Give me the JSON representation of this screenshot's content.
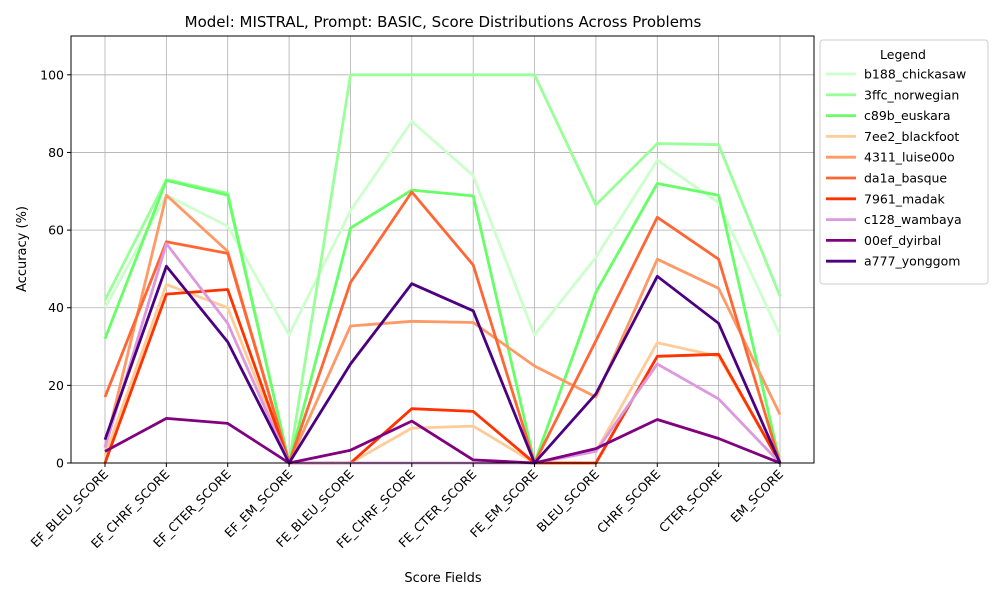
{
  "chart_data": {
    "type": "line",
    "title": "Model: MISTRAL, Prompt: BASIC, Score Distributions Across Problems",
    "xlabel": "Score Fields",
    "ylabel": "Accuracy (%)",
    "ylim": [
      0,
      110
    ],
    "yticks": [
      0,
      20,
      40,
      60,
      80,
      100
    ],
    "grid": true,
    "legend_title": "Legend",
    "legend_position": "outside-right",
    "categories": [
      "EF_BLEU_SCORE",
      "EF_CHRF_SCORE",
      "EF_CTER_SCORE",
      "EF_EM_SCORE",
      "FE_BLEU_SCORE",
      "FE_CHRF_SCORE",
      "FE_CTER_SCORE",
      "FE_EM_SCORE",
      "BLEU_SCORE",
      "CHRF_SCORE",
      "CTER_SCORE",
      "EM_SCORE"
    ],
    "series": [
      {
        "name": "b188_chickasaw",
        "color": "#ccffcc",
        "values": [
          40,
          69,
          61,
          33,
          65,
          88,
          74,
          33,
          53,
          78,
          67,
          33
        ]
      },
      {
        "name": "3ffc_norwegian",
        "color": "#99ff99",
        "values": [
          42,
          73,
          69.5,
          0,
          100,
          100,
          100,
          100,
          66.5,
          82.3,
          82,
          43
        ]
      },
      {
        "name": "c89b_euskara",
        "color": "#66ff66",
        "values": [
          32,
          72.8,
          69,
          0,
          60.5,
          70.3,
          68.8,
          0,
          44,
          72,
          69,
          0
        ]
      },
      {
        "name": "7ee2_blackfoot",
        "color": "#ffcc99",
        "values": [
          2,
          46,
          40,
          0,
          0,
          9,
          9.5,
          0,
          3,
          31,
          27.5,
          0
        ]
      },
      {
        "name": "4311_luise00o",
        "color": "#ff9966",
        "values": [
          4,
          69,
          54.5,
          0,
          35.3,
          36.5,
          36.2,
          25,
          17,
          52.5,
          45,
          12.5
        ]
      },
      {
        "name": "da1a_basque",
        "color": "#ff6633",
        "values": [
          17,
          57,
          54,
          0,
          46.5,
          69.8,
          51,
          0,
          31.5,
          63.3,
          52.5,
          0
        ]
      },
      {
        "name": "7961_madak",
        "color": "#ff3300",
        "values": [
          0,
          43.5,
          44.7,
          0,
          0,
          14,
          13.3,
          0,
          0,
          27.5,
          28,
          0
        ]
      },
      {
        "name": "c128_wambaya",
        "color": "#dd99dd",
        "values": [
          4,
          56.5,
          36,
          0,
          0,
          0,
          0,
          0,
          3,
          25.5,
          16.5,
          0
        ]
      },
      {
        "name": "00ef_dyirbal",
        "color": "#800080",
        "values": [
          3,
          11.5,
          10.2,
          0,
          3.3,
          10.8,
          0.8,
          0,
          3.7,
          11.2,
          6.3,
          0
        ]
      },
      {
        "name": "a777_yonggom",
        "color": "#4b0082",
        "values": [
          6,
          50.7,
          31.2,
          0,
          25.5,
          46.2,
          39.2,
          0,
          17.8,
          48.1,
          36,
          0
        ]
      }
    ]
  }
}
